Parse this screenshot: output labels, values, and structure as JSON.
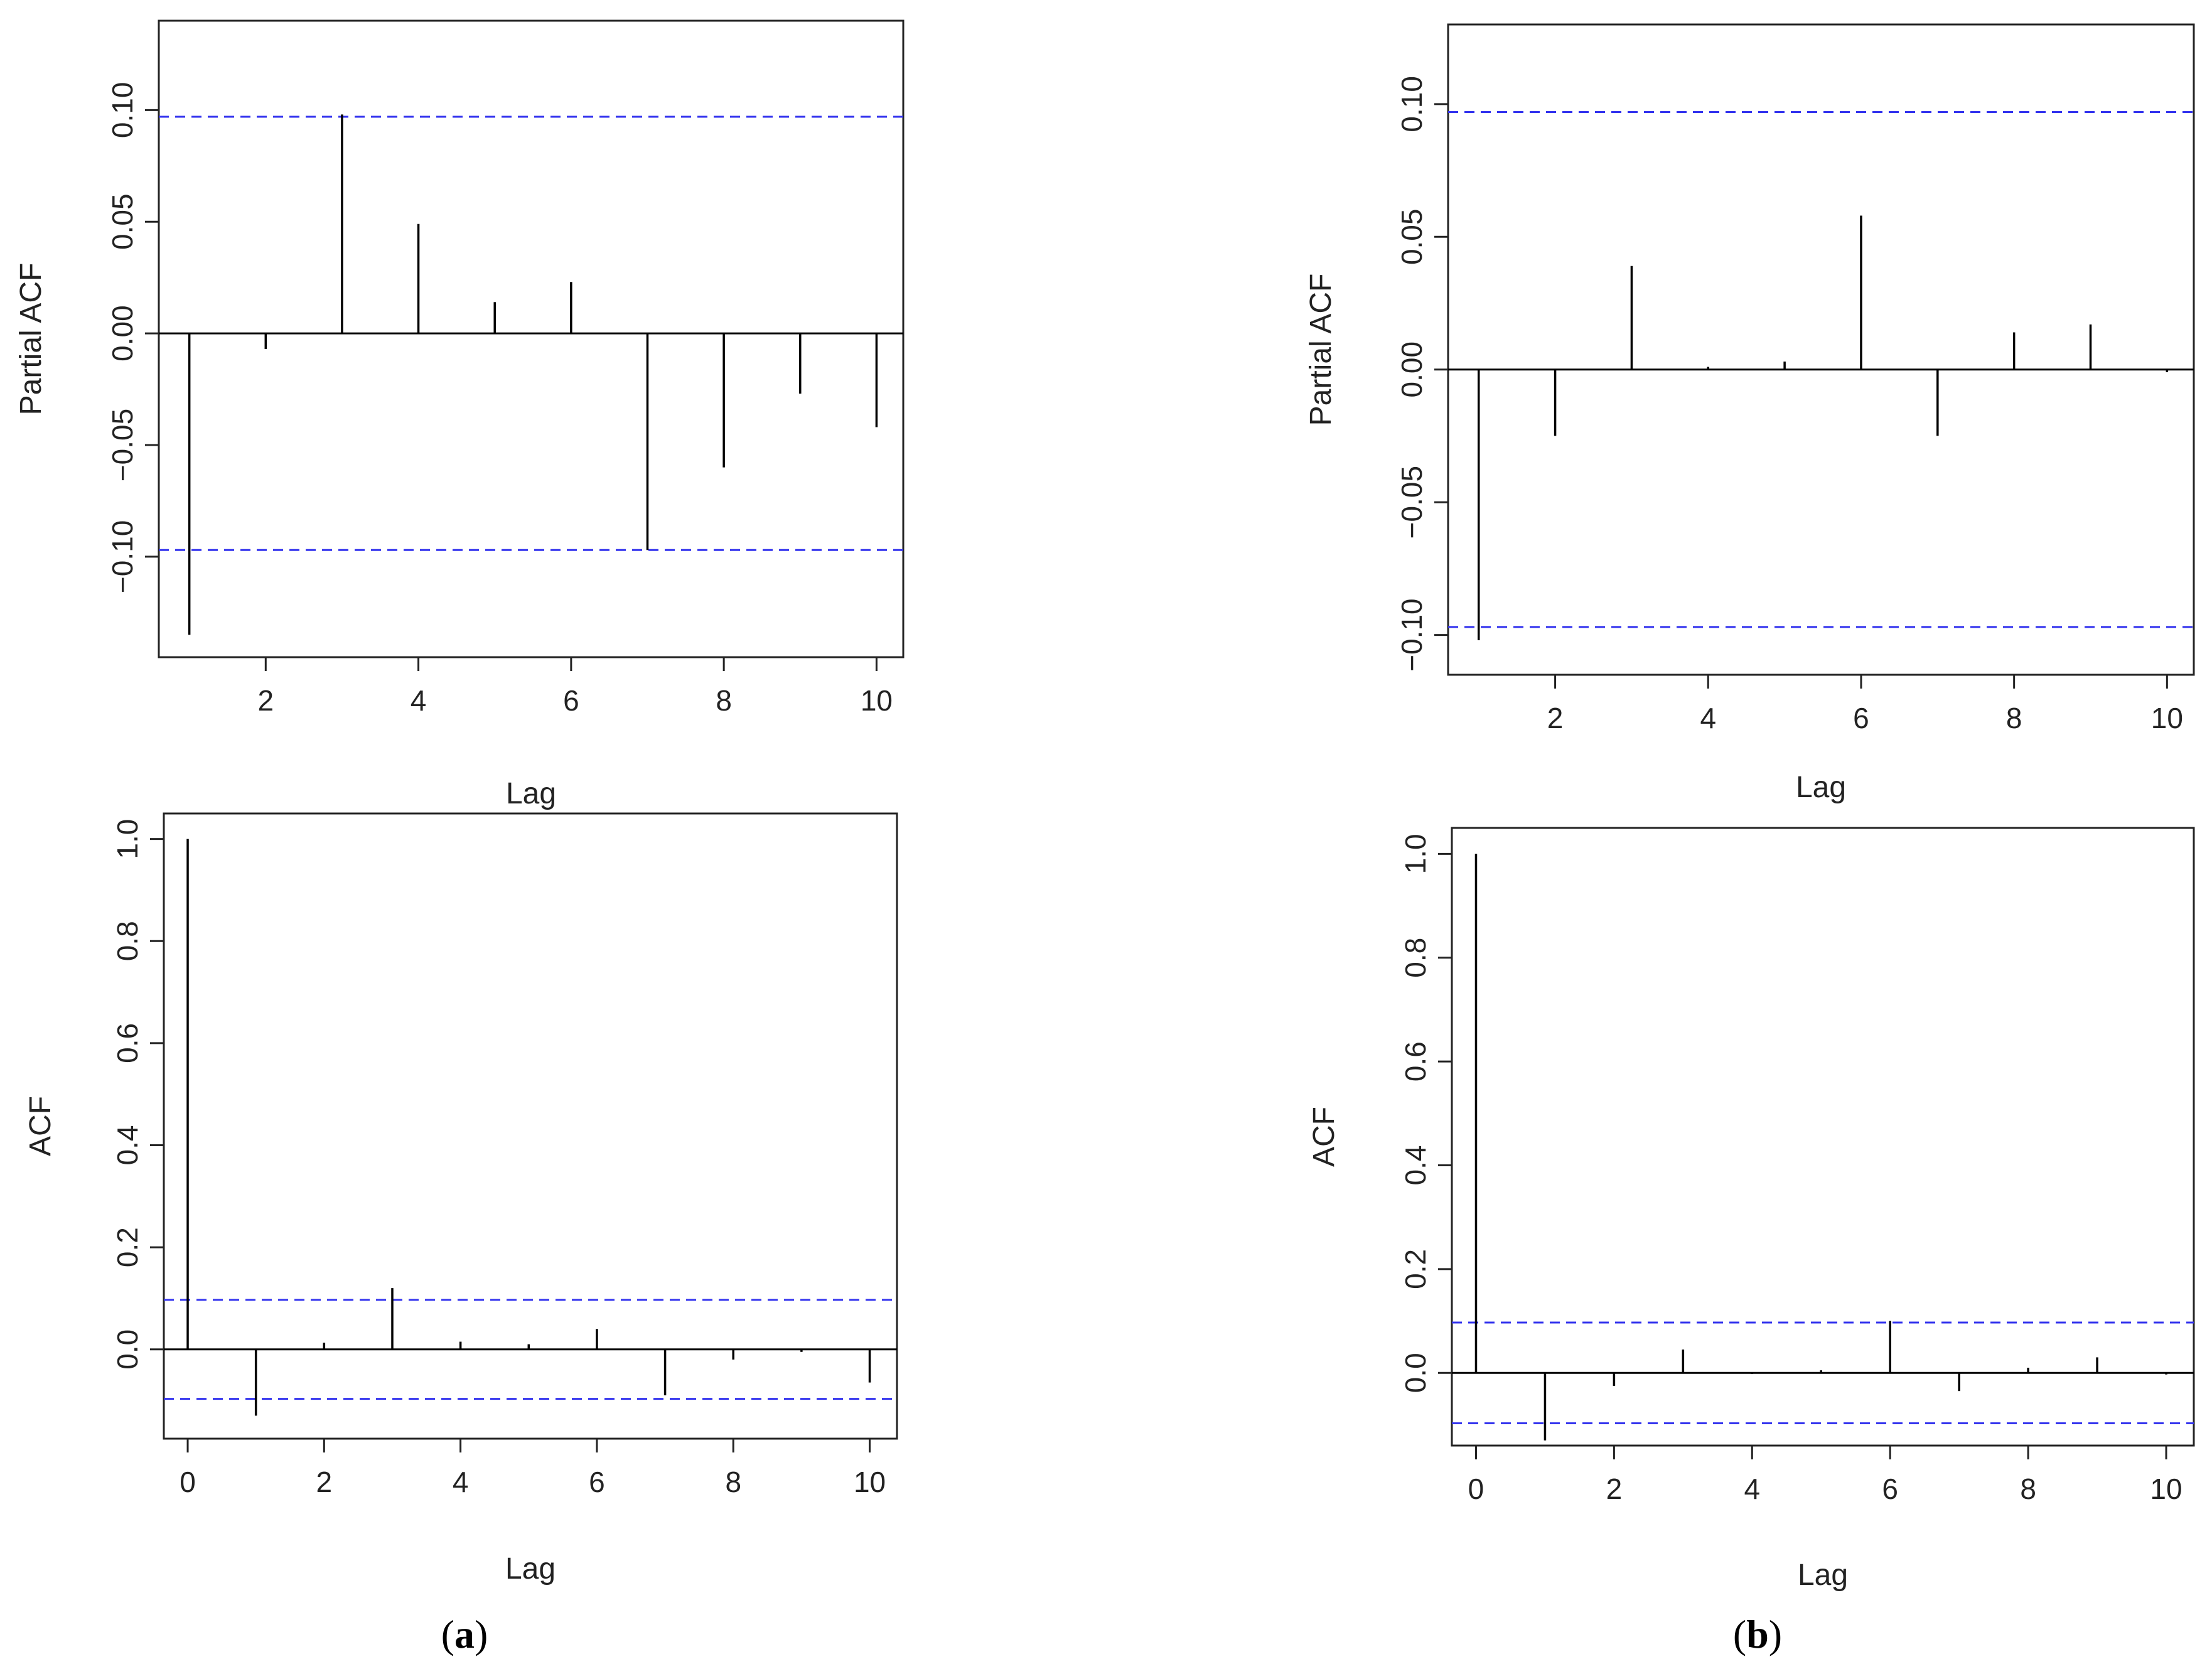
{
  "chart_data": [
    {
      "id": "a-pacf",
      "type": "bar",
      "ylabel": "Partial ACF",
      "xlabel": "Lag",
      "x": [
        1,
        2,
        3,
        4,
        5,
        6,
        7,
        8,
        9,
        10
      ],
      "values": [
        -0.135,
        -0.007,
        0.098,
        0.049,
        0.014,
        0.023,
        -0.097,
        -0.06,
        -0.027,
        -0.042
      ],
      "ci": 0.097,
      "xlim": [
        0.6,
        10.35
      ],
      "ylim": [
        -0.145,
        0.14
      ],
      "xticks": [
        2,
        4,
        6,
        8,
        10
      ],
      "xtick_labels": [
        "2",
        "4",
        "6",
        "8",
        "10"
      ],
      "yticks": [
        -0.1,
        -0.05,
        0.0,
        0.05,
        0.1
      ],
      "ytick_labels": [
        "−0.10",
        "−0.05",
        "0.00",
        "0.05",
        "0.10"
      ]
    },
    {
      "id": "b-pacf",
      "type": "bar",
      "ylabel": "Partial ACF",
      "xlabel": "Lag",
      "x": [
        1,
        2,
        3,
        4,
        5,
        6,
        7,
        8,
        9,
        10
      ],
      "values": [
        -0.102,
        -0.025,
        0.039,
        0.001,
        0.003,
        0.058,
        -0.025,
        0.014,
        0.017,
        -0.001
      ],
      "ci": 0.097,
      "xlim": [
        0.6,
        10.35
      ],
      "ylim": [
        -0.115,
        0.13
      ],
      "xticks": [
        2,
        4,
        6,
        8,
        10
      ],
      "xtick_labels": [
        "2",
        "4",
        "6",
        "8",
        "10"
      ],
      "yticks": [
        -0.1,
        -0.05,
        0.0,
        0.05,
        0.1
      ],
      "ytick_labels": [
        "−0.10",
        "−0.05",
        "0.00",
        "0.05",
        "0.10"
      ]
    },
    {
      "id": "a-acf",
      "type": "bar",
      "ylabel": "ACF",
      "xlabel": "Lag",
      "x": [
        0,
        1,
        2,
        3,
        4,
        5,
        6,
        7,
        8,
        9,
        10
      ],
      "values": [
        1.0,
        -0.13,
        0.013,
        0.12,
        0.015,
        0.01,
        0.04,
        -0.09,
        -0.02,
        -0.005,
        -0.065
      ],
      "ci": 0.097,
      "xlim": [
        -0.35,
        10.4
      ],
      "ylim": [
        -0.175,
        1.05
      ],
      "xticks": [
        0,
        2,
        4,
        6,
        8,
        10
      ],
      "xtick_labels": [
        "0",
        "2",
        "4",
        "6",
        "8",
        "10"
      ],
      "yticks": [
        0.0,
        0.2,
        0.4,
        0.6,
        0.8,
        1.0
      ],
      "ytick_labels": [
        "0.0",
        "0.2",
        "0.4",
        "0.6",
        "0.8",
        "1.0"
      ]
    },
    {
      "id": "b-acf",
      "type": "bar",
      "ylabel": "ACF",
      "xlabel": "Lag",
      "x": [
        0,
        1,
        2,
        3,
        4,
        5,
        6,
        7,
        8,
        9,
        10
      ],
      "values": [
        1.0,
        -0.13,
        -0.025,
        0.045,
        -0.002,
        0.005,
        0.1,
        -0.035,
        0.01,
        0.03,
        -0.003
      ],
      "ci": 0.097,
      "xlim": [
        -0.35,
        10.4
      ],
      "ylim": [
        -0.14,
        1.05
      ],
      "xticks": [
        0,
        2,
        4,
        6,
        8,
        10
      ],
      "xtick_labels": [
        "0",
        "2",
        "4",
        "6",
        "8",
        "10"
      ],
      "yticks": [
        0.0,
        0.2,
        0.4,
        0.6,
        0.8,
        1.0
      ],
      "ytick_labels": [
        "0.0",
        "0.2",
        "0.4",
        "0.6",
        "0.8",
        "1.0"
      ]
    }
  ],
  "panel_labels": {
    "a": {
      "open": "(",
      "letter": "a",
      "close": ")"
    },
    "b": {
      "open": "(",
      "letter": "b",
      "close": ")"
    }
  },
  "colors": {
    "bars": "#000000",
    "ci_line": "#3333ee",
    "axes": "#222222"
  }
}
